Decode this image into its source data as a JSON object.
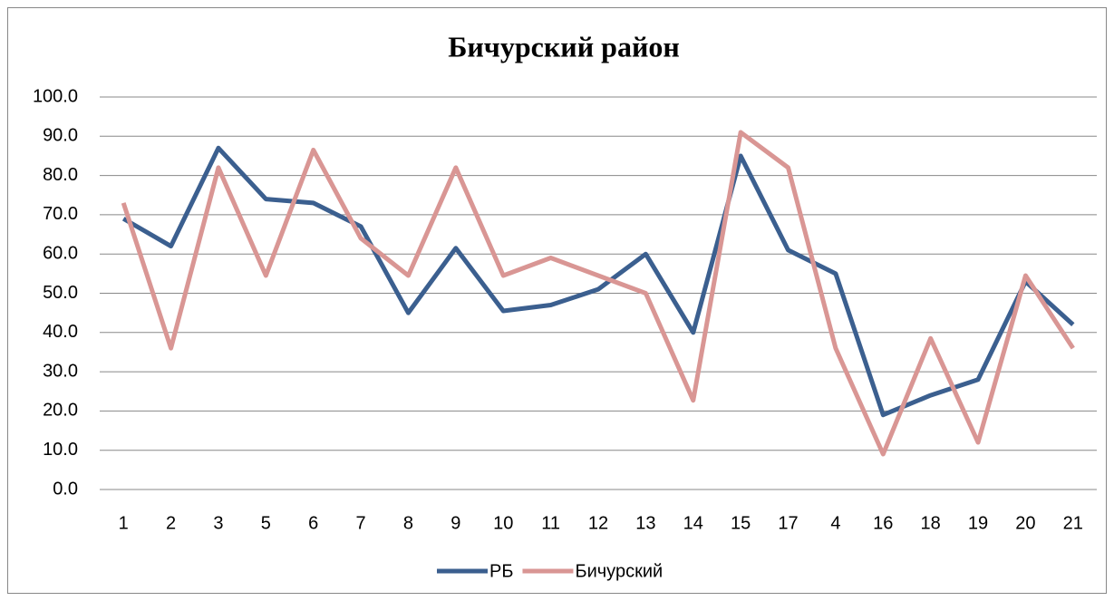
{
  "chart_data": {
    "type": "line",
    "title": "Бичурский район",
    "categories": [
      "1",
      "2",
      "3",
      "5",
      "6",
      "7",
      "8",
      "9",
      "10",
      "11",
      "12",
      "13",
      "14",
      "15",
      "17",
      "4",
      "16",
      "18",
      "19",
      "20",
      "21"
    ],
    "series": [
      {
        "name": "РБ",
        "color": "#3b5f8f",
        "values": [
          69,
          62,
          87,
          74,
          73,
          67,
          45,
          61.5,
          45.5,
          47,
          51,
          60,
          40,
          85,
          61,
          55,
          19,
          24,
          28,
          53,
          42
        ]
      },
      {
        "name": "Бичурский",
        "color": "#d99694",
        "values": [
          73,
          36,
          82,
          54.5,
          86.5,
          64,
          54.5,
          82,
          54.5,
          59,
          54.5,
          50,
          22.7,
          91,
          82,
          36,
          9,
          38.5,
          12,
          54.5,
          36
        ]
      }
    ],
    "ylim": [
      0,
      100
    ],
    "yticks": [
      {
        "value": 0,
        "label": "0.0"
      },
      {
        "value": 10,
        "label": "10.0"
      },
      {
        "value": 20,
        "label": "20.0"
      },
      {
        "value": 30,
        "label": "30.0"
      },
      {
        "value": 40,
        "label": "40.0"
      },
      {
        "value": 50,
        "label": "50.0"
      },
      {
        "value": 60,
        "label": "60.0"
      },
      {
        "value": 70,
        "label": "70.0"
      },
      {
        "value": 80,
        "label": "80.0"
      },
      {
        "value": 90,
        "label": "90.0"
      },
      {
        "value": 100,
        "label": "100.0"
      }
    ],
    "grid": true,
    "legend": "bottom"
  }
}
